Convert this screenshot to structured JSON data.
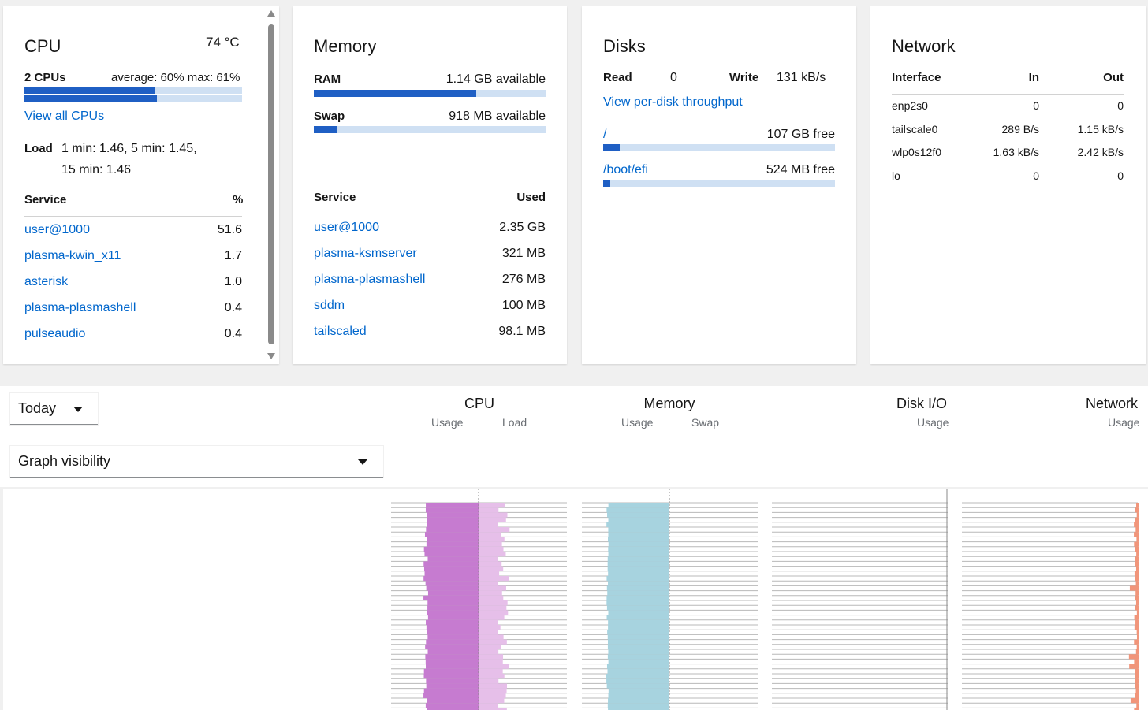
{
  "cpu": {
    "title": "CPU",
    "temp": "74 °C",
    "count_label": "2 CPUs",
    "average": "average: 60% max: 61%",
    "bars": [
      0.6,
      0.61
    ],
    "view_all": "View all CPUs",
    "load_label": "Load",
    "load_line1": "1 min: 1.46, 5 min: 1.45,",
    "load_line2": "15 min: 1.46",
    "service_header": "Service",
    "pct_header": "%",
    "services": [
      {
        "name": "user@1000",
        "value": "51.6"
      },
      {
        "name": "plasma-kwin_x11",
        "value": "1.7"
      },
      {
        "name": "asterisk",
        "value": "1.0"
      },
      {
        "name": "plasma-plasmashell",
        "value": "0.4"
      },
      {
        "name": "pulseaudio",
        "value": "0.4"
      }
    ]
  },
  "memory": {
    "title": "Memory",
    "ram_label": "RAM",
    "ram_value": "1.14 GB available",
    "ram_used_fraction": 0.7,
    "swap_label": "Swap",
    "swap_value": "918 MB available",
    "swap_used_fraction": 0.1,
    "service_header": "Service",
    "used_header": "Used",
    "services": [
      {
        "name": "user@1000",
        "value": "2.35 GB"
      },
      {
        "name": "plasma-ksmserver",
        "value": "321 MB"
      },
      {
        "name": "plasma-plasmashell",
        "value": "276 MB"
      },
      {
        "name": "sddm",
        "value": "100 MB"
      },
      {
        "name": "tailscaled",
        "value": "98.1 MB"
      }
    ]
  },
  "disks": {
    "title": "Disks",
    "read_label": "Read",
    "read_value": "0",
    "write_label": "Write",
    "write_value": "131 kB/s",
    "per_disk_link": "View per-disk throughput",
    "mounts": [
      {
        "path": "/",
        "free": "107 GB free",
        "used_fraction": 0.07
      },
      {
        "path": "/boot/efi",
        "free": "524 MB free",
        "used_fraction": 0.03
      }
    ]
  },
  "network": {
    "title": "Network",
    "headers": {
      "interface": "Interface",
      "in": "In",
      "out": "Out"
    },
    "rows": [
      {
        "iface": "enp2s0",
        "in": "0",
        "out": "0"
      },
      {
        "iface": "tailscale0",
        "in": "289 B/s",
        "out": "1.15 kB/s"
      },
      {
        "iface": "wlp0s12f0",
        "in": "1.63 kB/s",
        "out": "2.42 kB/s"
      },
      {
        "iface": "lo",
        "in": "0",
        "out": "0"
      }
    ]
  },
  "controls": {
    "range_select": "Today",
    "graph_visibility": "Graph visibility"
  },
  "graph_headers": {
    "cpu": {
      "title": "CPU",
      "sub1": "Usage",
      "sub2": "Load"
    },
    "memory": {
      "title": "Memory",
      "sub1": "Usage",
      "sub2": "Swap"
    },
    "disk": {
      "title": "Disk I/O",
      "sub1": "Usage"
    },
    "network": {
      "title": "Network",
      "sub1": "Usage"
    }
  },
  "colors": {
    "accent": "#1f5fc4",
    "link": "#0066cc",
    "cpu_usage": "#c67bd0",
    "cpu_load": "#e6bfe9",
    "memory_usage": "#a7d3df",
    "network_usage": "#f1957a"
  }
}
